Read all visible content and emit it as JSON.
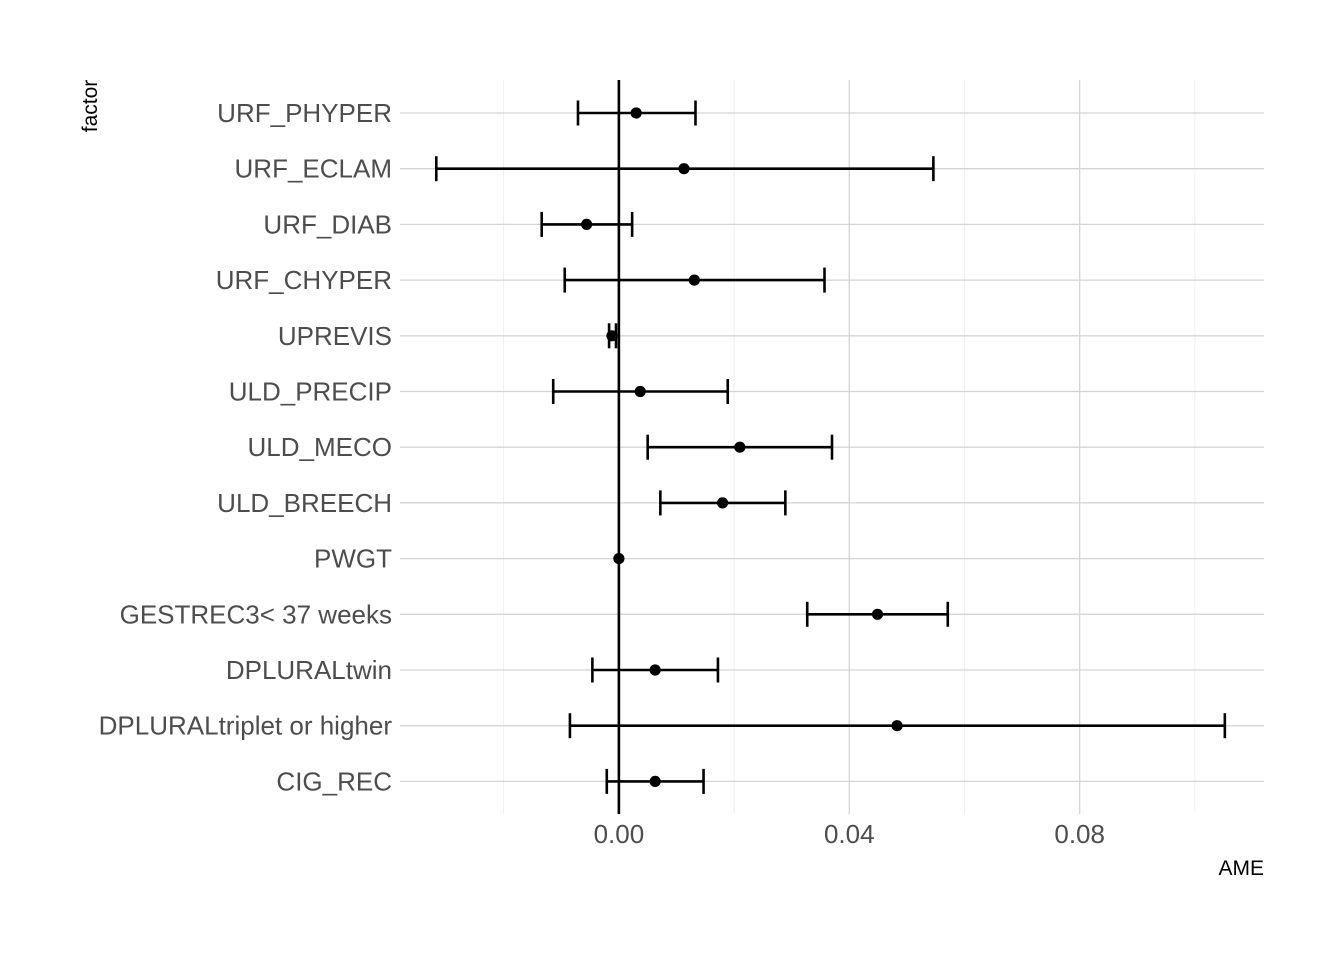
{
  "chart_data": {
    "type": "scatter",
    "subtype": "point-errorbar",
    "xlabel": "AME",
    "ylabel": "factor",
    "xlim": [
      -0.038,
      0.112
    ],
    "xticks": [
      0.0,
      0.04,
      0.08
    ],
    "xtick_labels": [
      "0.00",
      "0.04",
      "0.08"
    ],
    "grid": true,
    "legend": "none",
    "reference_line": 0,
    "categories": [
      "URF_PHYPER",
      "URF_ECLAM",
      "URF_DIAB",
      "URF_CHYPER",
      "UPREVIS",
      "ULD_PRECIP",
      "ULD_MECO",
      "ULD_BREECH",
      "PWGT",
      "GESTREC3< 37 weeks",
      "DPLURALtwin",
      "DPLURALtriplet or higher",
      "CIG_REC"
    ],
    "values": [
      0.003,
      0.0113,
      -0.0056,
      0.0131,
      -0.0012,
      0.0037,
      0.021,
      0.018,
      0.0,
      0.0449,
      0.0063,
      0.0483,
      0.0063
    ],
    "lower": [
      -0.0071,
      -0.0317,
      -0.0134,
      -0.0094,
      -0.0017,
      -0.0114,
      0.005,
      0.0072,
      0.0,
      0.0327,
      -0.0046,
      -0.0085,
      -0.0021
    ],
    "upper": [
      0.0133,
      0.0546,
      0.0023,
      0.0357,
      -0.0005,
      0.0189,
      0.037,
      0.0289,
      0.0,
      0.0571,
      0.0172,
      0.1052,
      0.0147
    ]
  }
}
